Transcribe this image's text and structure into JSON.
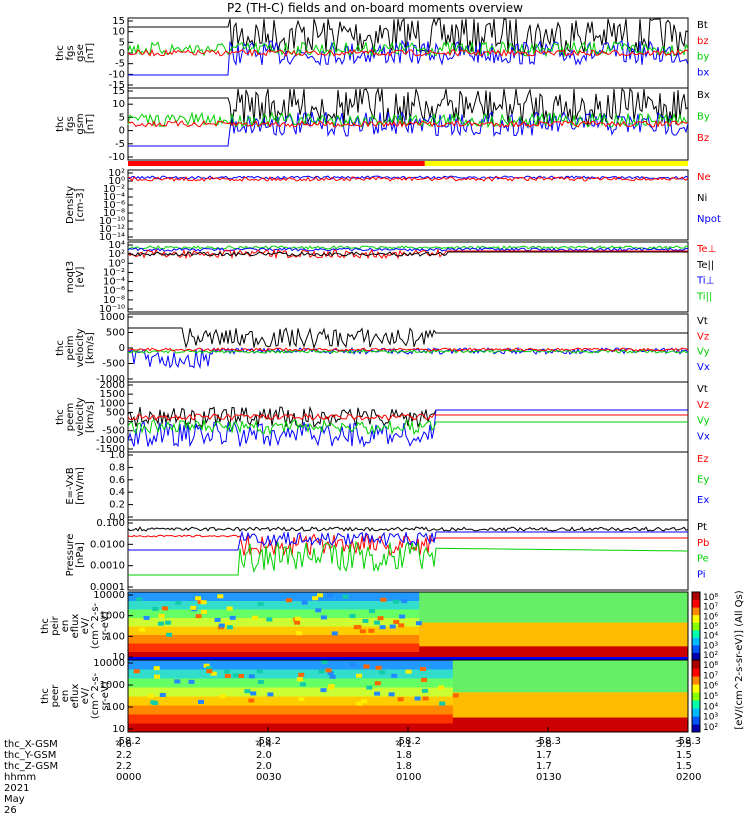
{
  "title": "P2 (TH-C) fields and on-board moments overview",
  "colors": {
    "black": "#000000",
    "red": "#ff0000",
    "green": "#00d000",
    "blue": "#0000ff",
    "yellow": "#ffff00"
  },
  "panels": [
    {
      "id": "fgs1",
      "ylabel": [
        "thc",
        "fgs",
        "gse",
        "[nT]"
      ],
      "yticks": [
        "15",
        "10",
        "5",
        "0",
        "-5",
        "-10",
        "-15"
      ],
      "legend": [
        {
          "text": "Bt",
          "color": "#000000"
        },
        {
          "text": "bz",
          "color": "#ff0000"
        },
        {
          "text": "by",
          "color": "#00d000"
        },
        {
          "text": "bx",
          "color": "#0000ff"
        }
      ]
    },
    {
      "id": "fgs2",
      "ylabel": [
        "thc",
        "fgs",
        "gsm",
        "[nT]"
      ],
      "yticks": [
        "15",
        "10",
        "5",
        "0",
        "-5",
        "-10"
      ],
      "legend": [
        {
          "text": "Bx",
          "color": "#000000"
        },
        {
          "text": "By",
          "color": "#00d000"
        },
        {
          "text": "Bz",
          "color": "#ff0000"
        }
      ]
    },
    {
      "id": "density",
      "ylabel": [
        "Density",
        "[cm-3]"
      ],
      "yticks": [
        "10²",
        "10⁰",
        "10⁻²",
        "10⁻⁴",
        "10⁻⁶",
        "10⁻⁸",
        "10⁻¹⁰",
        "10⁻¹²",
        "10⁻¹⁴"
      ],
      "legend": [
        {
          "text": "Ne",
          "color": "#ff0000"
        },
        {
          "text": "Ni",
          "color": "#000000"
        },
        {
          "text": "Npot",
          "color": "#0000ff"
        }
      ]
    },
    {
      "id": "temp",
      "ylabel": [
        "moqt3",
        "[eV]"
      ],
      "yticks": [
        "10⁴",
        "10²",
        "10⁰",
        "10⁻²",
        "10⁻⁴",
        "10⁻⁶",
        "10⁻⁸",
        "10⁻¹⁰"
      ],
      "legend": [
        {
          "text": "Te⊥",
          "color": "#ff0000"
        },
        {
          "text": "Te||",
          "color": "#000000"
        },
        {
          "text": "Ti⊥",
          "color": "#0000ff"
        },
        {
          "text": "Ti||",
          "color": "#00d000"
        }
      ]
    },
    {
      "id": "peim",
      "ylabel": [
        "thc",
        "peim",
        "velocity",
        "[km/s]"
      ],
      "yticks": [
        "1000",
        "500",
        "0",
        "-500",
        "-1000"
      ],
      "legend": [
        {
          "text": "Vt",
          "color": "#000000"
        },
        {
          "text": "Vz",
          "color": "#ff0000"
        },
        {
          "text": "Vy",
          "color": "#00d000"
        },
        {
          "text": "Vx",
          "color": "#0000ff"
        }
      ]
    },
    {
      "id": "peem",
      "ylabel": [
        "thc",
        "peem",
        "velocity",
        "[km/s]"
      ],
      "yticks": [
        "2000",
        "1500",
        "1000",
        "500",
        "0",
        "-500",
        "-1000",
        "-1500"
      ],
      "legend": [
        {
          "text": "Vt",
          "color": "#000000"
        },
        {
          "text": "Vz",
          "color": "#ff0000"
        },
        {
          "text": "Vy",
          "color": "#00d000"
        },
        {
          "text": "Vx",
          "color": "#0000ff"
        }
      ]
    },
    {
      "id": "efield",
      "ylabel": [
        "E=-VxB",
        "[mV/m]"
      ],
      "yticks": [
        "1.0",
        "0.8",
        "0.6",
        "0.4",
        "0.2",
        "0.0"
      ],
      "legend": [
        {
          "text": "Ez",
          "color": "#ff0000"
        },
        {
          "text": "Ey",
          "color": "#00d000"
        },
        {
          "text": "Ex",
          "color": "#0000ff"
        }
      ]
    },
    {
      "id": "pressure",
      "ylabel": [
        "Pressure",
        "[nPa]"
      ],
      "yticks": [
        "0.100",
        "0.0100",
        "0.0010",
        "0.0001"
      ],
      "legend": [
        {
          "text": "Pt",
          "color": "#000000"
        },
        {
          "text": "Pb",
          "color": "#ff0000"
        },
        {
          "text": "Pe",
          "color": "#00d000"
        },
        {
          "text": "Pi",
          "color": "#0000ff"
        }
      ]
    },
    {
      "id": "peir",
      "ylabel": [
        "thc",
        "peir",
        "en",
        "eflux",
        "eV/",
        "(cm^2-s-",
        "sr-eV)"
      ],
      "yticks": [
        "10000",
        "1000",
        "100",
        "10"
      ],
      "legend": []
    },
    {
      "id": "peer",
      "ylabel": [
        "thc",
        "peer",
        "en",
        "eflux",
        "eV/",
        "(cm^2-s-",
        "sr-eV)"
      ],
      "yticks": [
        "10000",
        "1000",
        "100",
        "10"
      ],
      "legend": []
    }
  ],
  "colorbar": {
    "label": "[eV/(cm^2-s-sr-eV)] (All Qs)",
    "ticks_top": [
      "10⁸",
      "10⁷",
      "10⁶",
      "10⁵",
      "10⁴",
      "10³",
      "10²"
    ],
    "ticks_bottom": [
      "10⁸",
      "10⁷",
      "10⁶",
      "10⁵",
      "10⁴",
      "10³",
      "10²"
    ]
  },
  "time_axis": {
    "ticks": [
      "-58.2",
      "-58.2",
      "-58.2",
      "-58.3",
      "-58.3"
    ],
    "rows": [
      {
        "label": "thc_X-GSM",
        "values": [
          "4.6",
          "4.4",
          "4.1",
          "3.8",
          "3.5"
        ]
      },
      {
        "label": "thc_Y-GSM",
        "values": [
          "2.2",
          "2.0",
          "1.8",
          "1.7",
          "1.5"
        ]
      },
      {
        "label": "thc_Z-GSM",
        "values": [
          "2.2",
          "2.0",
          "1.8",
          "1.7",
          "1.5"
        ]
      },
      {
        "label": "hhmm",
        "values": [
          "0000",
          "0030",
          "0100",
          "0130",
          "0200"
        ]
      }
    ],
    "date": "2021 May 26"
  },
  "chart_data": {
    "type": "line",
    "title": "P2 (TH-C) fields and on-board moments overview",
    "x": [
      "0000",
      "0030",
      "0100",
      "0130",
      "0200"
    ],
    "xlabel": "hhmm",
    "date": "2021 May 26",
    "ranges": {
      "fgs_gse": [
        -15,
        15
      ],
      "fgs_gsm": [
        -15,
        15
      ],
      "density": [
        1e-14,
        100
      ],
      "temperature": [
        1e-10,
        10000.0
      ],
      "peim_velocity": [
        -1000,
        1000
      ],
      "peem_velocity": [
        -1500,
        2000
      ],
      "e_field": [
        0,
        1
      ],
      "pressure": [
        0.0001,
        0.1
      ],
      "eflux_energy": [
        10,
        10000
      ]
    },
    "series": [
      {
        "name": "Bt",
        "values": [
          7,
          9,
          8,
          6,
          5
        ]
      },
      {
        "name": "bz",
        "values": [
          0,
          1,
          0,
          0,
          0
        ]
      },
      {
        "name": "by",
        "values": [
          1,
          2,
          0,
          -1,
          0
        ]
      },
      {
        "name": "bx",
        "values": [
          -5,
          -3,
          -2,
          -4,
          -6
        ]
      },
      {
        "name": "Vt (peim)",
        "values": [
          300,
          50,
          350,
          350,
          350
        ]
      },
      {
        "name": "Vt (peem)",
        "values": [
          200,
          300,
          400,
          300,
          300
        ]
      },
      {
        "name": "Pt",
        "values": [
          0.06,
          0.04,
          0.05,
          0.04,
          0.04
        ]
      }
    ]
  }
}
